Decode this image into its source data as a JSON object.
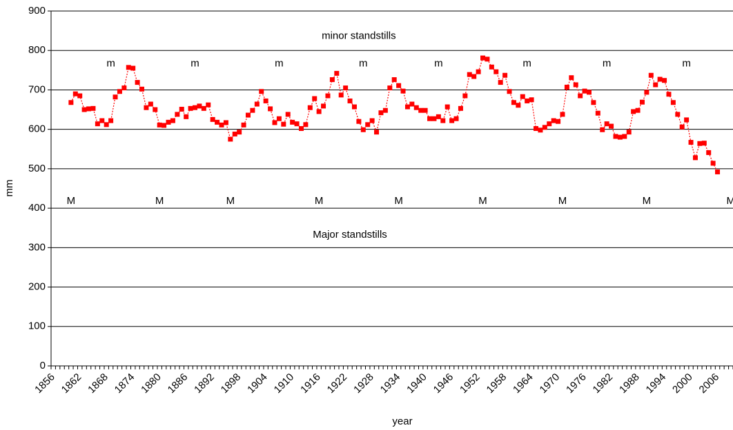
{
  "chart_data": {
    "type": "line",
    "x_label": "year",
    "y_label": "mm",
    "categories": [
      1856,
      null,
      null,
      null,
      null,
      null,
      1862,
      null,
      null,
      null,
      null,
      null,
      1868,
      null,
      null,
      null,
      null,
      null,
      1874,
      null,
      null,
      null,
      null,
      null,
      1880,
      null,
      null,
      null,
      null,
      null,
      1886,
      null,
      null,
      null,
      null,
      null,
      1892,
      null,
      null,
      null,
      null,
      null,
      1898,
      null,
      null,
      null,
      null,
      null,
      1904,
      null,
      null,
      null,
      null,
      null,
      1910,
      null,
      null,
      null,
      null,
      null,
      1916,
      null,
      null,
      null,
      null,
      null,
      1922,
      null,
      null,
      null,
      null,
      null,
      1928,
      null,
      null,
      null,
      null,
      null,
      1934,
      null,
      null,
      null,
      null,
      null,
      1940,
      null,
      null,
      null,
      null,
      null,
      1946,
      null,
      null,
      null,
      null,
      null,
      1952,
      null,
      null,
      null,
      null,
      null,
      1958,
      null,
      null,
      null,
      null,
      null,
      1964,
      null,
      null,
      null,
      null,
      null,
      1970,
      null,
      null,
      null,
      null,
      null,
      1976,
      null,
      null,
      null,
      null,
      null,
      1982,
      null,
      null,
      null,
      null,
      null,
      1988,
      null,
      null,
      null,
      null,
      null,
      1994,
      null,
      null,
      null,
      null,
      null,
      2000,
      null,
      null,
      null,
      null,
      null,
      2006,
      null,
      null,
      null
    ],
    "series": [
      {
        "color": "#ff0000",
        "values": [
          null,
          null,
          null,
          null,
          668,
          690,
          685,
          650,
          652,
          653,
          614,
          622,
          612,
          622,
          682,
          696,
          705,
          757,
          755,
          719,
          702,
          655,
          664,
          650,
          611,
          610,
          618,
          622,
          638,
          651,
          632,
          653,
          655,
          659,
          653,
          662,
          625,
          618,
          611,
          617,
          575,
          588,
          593,
          611,
          636,
          648,
          664,
          696,
          672,
          652,
          617,
          627,
          613,
          638,
          618,
          614,
          602,
          612,
          655,
          678,
          645,
          659,
          685,
          726,
          742,
          687,
          705,
          672,
          657,
          620,
          599,
          612,
          622,
          593,
          642,
          648,
          705,
          726,
          711,
          697,
          657,
          664,
          655,
          648,
          648,
          627,
          627,
          632,
          622,
          657,
          622,
          627,
          653,
          685,
          739,
          734,
          746,
          781,
          778,
          758,
          746,
          719,
          737,
          696,
          668,
          661,
          683,
          672,
          675,
          602,
          598,
          605,
          614,
          622,
          620,
          638,
          707,
          731,
          713,
          685,
          697,
          694,
          668,
          641,
          599,
          614,
          608,
          582,
          580,
          582,
          593,
          645,
          648,
          669,
          694,
          737,
          713,
          727,
          724,
          689,
          668,
          638,
          606,
          624,
          567,
          528,
          564,
          565,
          541,
          514,
          492,
          null,
          null,
          null
        ]
      }
    ],
    "ylim": [
      0,
      900
    ],
    "yticks": [
      0,
      100,
      200,
      300,
      400,
      500,
      600,
      700,
      800,
      900
    ],
    "grid": true,
    "annotations": [
      {
        "text": "minor standstills",
        "x": 1925,
        "y": 836
      },
      {
        "text": "Major standstills",
        "x": 1923,
        "y": 332
      },
      {
        "text": "m",
        "x": 1869,
        "y": 766
      },
      {
        "text": "m",
        "x": 1888,
        "y": 766
      },
      {
        "text": "m",
        "x": 1907,
        "y": 766
      },
      {
        "text": "m",
        "x": 1926,
        "y": 766
      },
      {
        "text": "m",
        "x": 1943,
        "y": 766
      },
      {
        "text": "m",
        "x": 1963,
        "y": 766
      },
      {
        "text": "m",
        "x": 1981,
        "y": 766
      },
      {
        "text": "m",
        "x": 1999,
        "y": 766
      },
      {
        "text": "M",
        "x": 1860,
        "y": 418
      },
      {
        "text": "M",
        "x": 1880,
        "y": 418
      },
      {
        "text": "M",
        "x": 1896,
        "y": 418
      },
      {
        "text": "M",
        "x": 1916,
        "y": 418
      },
      {
        "text": "M",
        "x": 1934,
        "y": 418
      },
      {
        "text": "M",
        "x": 1953,
        "y": 418
      },
      {
        "text": "M",
        "x": 1971,
        "y": 418
      },
      {
        "text": "M",
        "x": 1990,
        "y": 418
      },
      {
        "text": "M",
        "x": 2009,
        "y": 418
      }
    ]
  }
}
